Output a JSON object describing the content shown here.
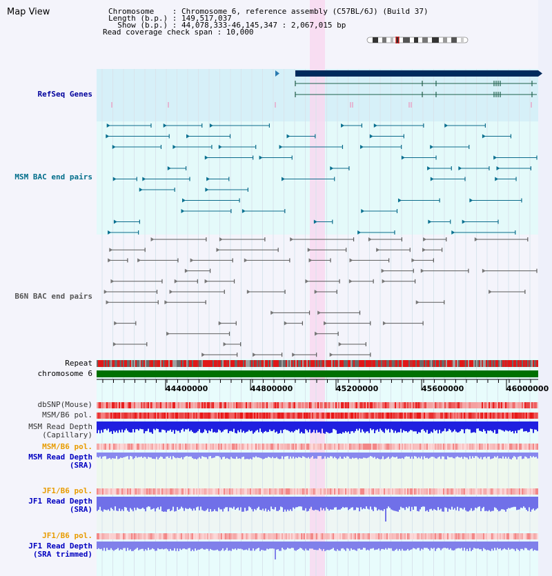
{
  "title": "Map View",
  "header": {
    "line1": "Chromosome    : Chromosome 6, reference assembly (C57BL/6J) (Build 37)",
    "line2": "Length (b.p.) : 149,517,037",
    "line3": "  Show (b.p.) : 44,078,333-46,145,347 : 2,067,015 bp",
    "line4": "Read coverage check span : 10,000"
  },
  "tracks": {
    "refseq": "RefSeq Genes",
    "msm_bac": "MSM BAC end pairs",
    "b6n_bac": "B6N BAC end pairs",
    "repeat": "Repeat",
    "chromosome": "chromosome 6",
    "dbsnp": "dbSNP(Mouse)",
    "msm_b6_pol_1": "MSM/B6 pol.",
    "msm_depth_cap": "MSM Read Depth\n(Capillary)",
    "msm_b6_pol_2": "MSM/B6 pol.",
    "msm_depth_sra": "MSM Read Depth\n(SRA)",
    "jf1_b6_pol_1": "JF1/B6 pol.",
    "jf1_depth_sra": "JF1 Read Depth\n(SRA)",
    "jf1_b6_pol_2": "JF1/B6 pol.",
    "jf1_depth_trim": "JF1 Read Depth\n(SRA trimmed)"
  },
  "axis": {
    "ticks": [
      "44400000",
      "44800000",
      "45200000",
      "45600000",
      "46000000"
    ]
  },
  "colors": {
    "refseq_label": "#00009c",
    "msm_label": "#006d8a",
    "b6n_label": "#444444",
    "orange_label": "#e89c00",
    "blue_label": "#0000c0",
    "highlight": "#f8d8f0",
    "chromosome_bar": "#007000"
  },
  "icons": [
    "chromosome-ideogram-icon"
  ]
}
